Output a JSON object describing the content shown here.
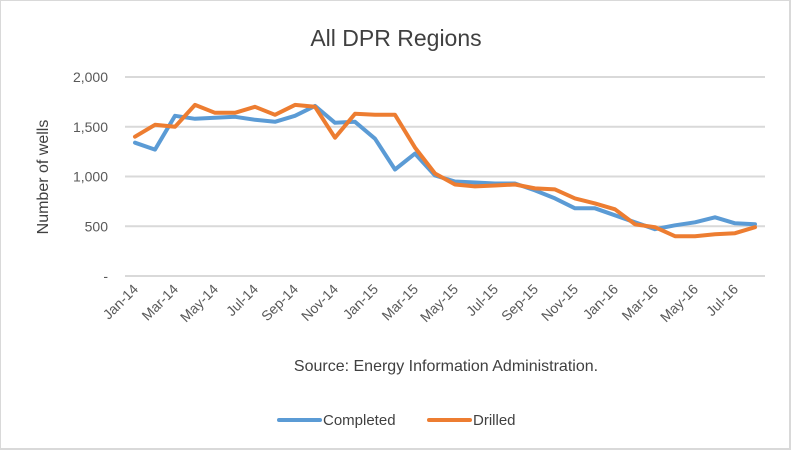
{
  "chart_data": {
    "type": "line",
    "title": "All DPR Regions",
    "xlabel": "",
    "ylabel": "Number of wells",
    "ylim": [
      0,
      2000
    ],
    "yticks": [
      0,
      500,
      1000,
      1500,
      2000
    ],
    "ytick_labels": [
      "-",
      "500",
      "1,000",
      "1,500",
      "2,000"
    ],
    "grid": true,
    "legend_position": "bottom",
    "annotation": "Source: Energy Information Administration.",
    "x": [
      "Jan-14",
      "Feb-14",
      "Mar-14",
      "Apr-14",
      "May-14",
      "Jun-14",
      "Jul-14",
      "Aug-14",
      "Sep-14",
      "Oct-14",
      "Nov-14",
      "Dec-14",
      "Jan-15",
      "Feb-15",
      "Mar-15",
      "Apr-15",
      "May-15",
      "Jun-15",
      "Jul-15",
      "Aug-15",
      "Sep-15",
      "Oct-15",
      "Nov-15",
      "Dec-15",
      "Jan-16",
      "Feb-16",
      "Mar-16",
      "Apr-16",
      "May-16",
      "Jun-16",
      "Jul-16",
      "Aug-16"
    ],
    "xtick_labels": [
      "Jan-14",
      "Mar-14",
      "May-14",
      "Jul-14",
      "Sep-14",
      "Nov-14",
      "Jan-15",
      "Mar-15",
      "May-15",
      "Jul-15",
      "Sep-15",
      "Nov-15",
      "Jan-16",
      "Mar-16",
      "May-16",
      "Jul-16"
    ],
    "series": [
      {
        "name": "Completed",
        "color": "#5b9bd5",
        "values": [
          1340,
          1270,
          1610,
          1580,
          1590,
          1600,
          1570,
          1550,
          1610,
          1710,
          1540,
          1550,
          1380,
          1070,
          1230,
          1010,
          950,
          940,
          930,
          930,
          860,
          780,
          680,
          680,
          610,
          540,
          470,
          510,
          540,
          590,
          530,
          520
        ]
      },
      {
        "name": "Drilled",
        "color": "#ed7d31",
        "values": [
          1400,
          1520,
          1500,
          1720,
          1640,
          1640,
          1700,
          1620,
          1720,
          1700,
          1390,
          1630,
          1620,
          1620,
          1290,
          1030,
          920,
          900,
          910,
          920,
          880,
          870,
          780,
          730,
          670,
          520,
          490,
          400,
          400,
          420,
          430,
          490
        ]
      }
    ]
  }
}
